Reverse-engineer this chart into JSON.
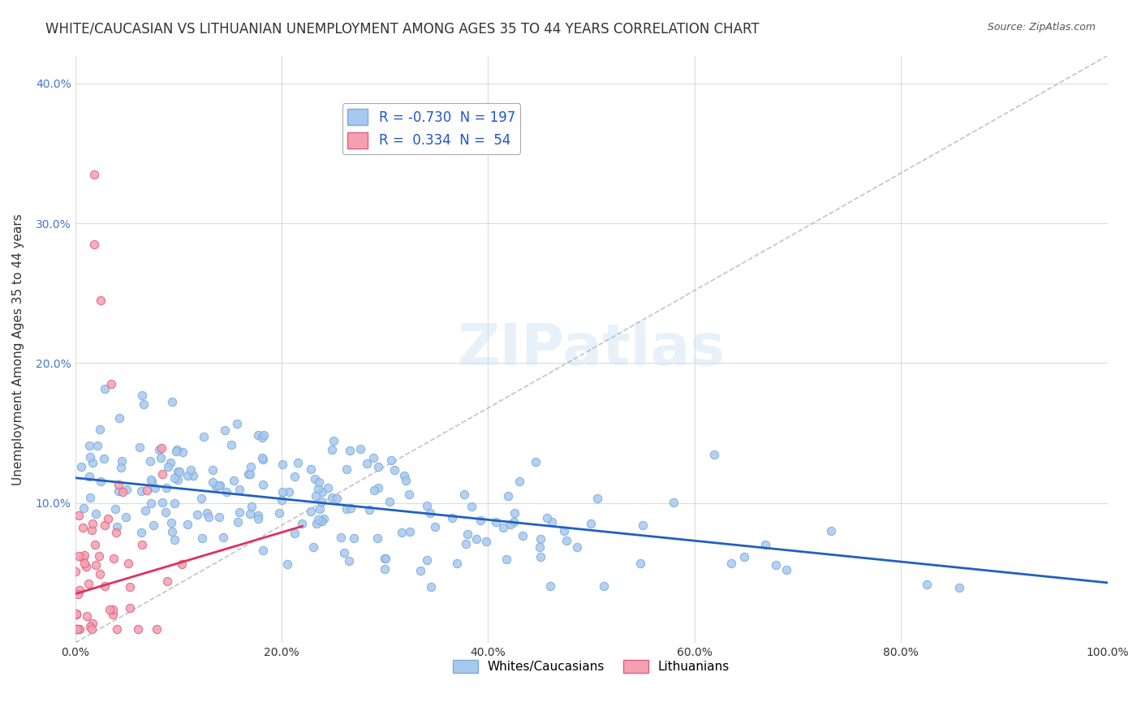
{
  "title": "WHITE/CAUCASIAN VS LITHUANIAN UNEMPLOYMENT AMONG AGES 35 TO 44 YEARS CORRELATION CHART",
  "source": "Source: ZipAtlas.com",
  "xlabel": "",
  "ylabel": "Unemployment Among Ages 35 to 44 years",
  "xlim": [
    0,
    1.0
  ],
  "ylim": [
    0,
    0.42
  ],
  "xticks": [
    0.0,
    0.2,
    0.4,
    0.6,
    0.8,
    1.0
  ],
  "xtick_labels": [
    "0.0%",
    "20.0%",
    "40.0%",
    "60.0%",
    "80.0%",
    "100.0%"
  ],
  "yticks": [
    0.0,
    0.1,
    0.2,
    0.3,
    0.4
  ],
  "ytick_labels": [
    "",
    "10.0%",
    "20.0%",
    "30.0%",
    "40.0%"
  ],
  "legend_entries": [
    "R = -0.730  N = 197",
    "R =  0.334  N =  54"
  ],
  "series_labels": [
    "Whites/Caucasians",
    "Lithuanians"
  ],
  "blue_color": "#a8c8f0",
  "blue_edge": "#7badd4",
  "pink_color": "#f4a0b0",
  "pink_edge": "#e06080",
  "blue_line_color": "#2060c0",
  "pink_line_color": "#e03060",
  "trend_line_style": "--",
  "background_color": "#ffffff",
  "grid_color": "#cccccc",
  "watermark": "ZIPatlas",
  "r_blue": -0.73,
  "n_blue": 197,
  "r_pink": 0.334,
  "n_pink": 54,
  "blue_intercept": 0.118,
  "blue_slope": -0.075,
  "pink_intercept": 0.035,
  "pink_slope": 0.22,
  "title_fontsize": 12,
  "label_fontsize": 11,
  "tick_fontsize": 10,
  "legend_fontsize": 12
}
